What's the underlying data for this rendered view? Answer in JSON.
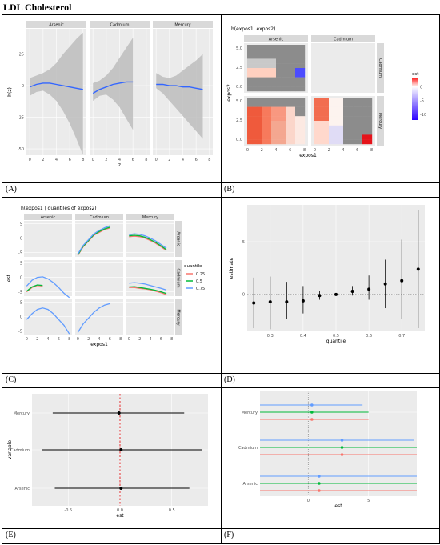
{
  "title": "LDL Cholesterol",
  "panel_labels": [
    "(A)",
    "(B)",
    "(C)",
    "(D)",
    "(E)",
    "(F)"
  ],
  "colors": {
    "panel_bg": "#ebebeb",
    "strip_bg": "#d9d9d9",
    "line_blue": "#3366ff",
    "ribbon": "#bdbdbd",
    "q25": "#f8766d",
    "q50": "#00ba38",
    "q75": "#619cff",
    "ref_red": "#e41a1c"
  },
  "chart_data": [
    {
      "id": "A",
      "type": "line",
      "metals": [
        "Arsenic",
        "Cadmium",
        "Mercury"
      ],
      "xlabel": "z",
      "ylabel": "h(z)",
      "x_ticks": [
        "0",
        "2",
        "4",
        "6",
        "8"
      ],
      "y_ticks": [
        "25",
        "0",
        "-25",
        "-50"
      ],
      "ylim": [
        -55,
        45
      ],
      "series": [
        {
          "metal": "Arsenic",
          "x": [
            0,
            1,
            2,
            3,
            4,
            5,
            6,
            7,
            8
          ],
          "est": [
            -1,
            1,
            2,
            2,
            1,
            0,
            -1,
            -2,
            -3
          ],
          "lower": [
            -8,
            -5,
            -4,
            -7,
            -12,
            -20,
            -30,
            -42,
            -55
          ],
          "upper": [
            6,
            8,
            10,
            13,
            18,
            25,
            31,
            37,
            42
          ]
        },
        {
          "metal": "Cadmium",
          "x": [
            0,
            1,
            2,
            3,
            4,
            5,
            6
          ],
          "est": [
            -6,
            -3,
            -1,
            1,
            2,
            3,
            3
          ],
          "lower": [
            -12,
            -8,
            -7,
            -11,
            -17,
            -26,
            -35
          ],
          "upper": [
            2,
            4,
            8,
            14,
            22,
            30,
            38
          ]
        },
        {
          "metal": "Mercury",
          "x": [
            0,
            1,
            2,
            3,
            4,
            5,
            6,
            7
          ],
          "est": [
            1,
            1,
            0,
            0,
            -1,
            -1,
            -2,
            -3
          ],
          "lower": [
            -2,
            -6,
            -12,
            -18,
            -24,
            -30,
            -36,
            -42
          ],
          "upper": [
            10,
            7,
            6,
            8,
            12,
            16,
            20,
            25
          ]
        }
      ]
    },
    {
      "id": "B",
      "type": "heatmap",
      "title": "h(expos1, expos2)",
      "columns": [
        "Arsenic",
        "Cadmium"
      ],
      "rows": [
        "Cadmium",
        "Mercury"
      ],
      "xlabel": "expos1",
      "ylabel": "expos2",
      "x_ticks": [
        "0",
        "2",
        "4",
        "6",
        "8"
      ],
      "y_ticks": [
        "5.0",
        "2.5",
        "0.0"
      ],
      "legend_title": "est",
      "legend_ticks": [
        "0",
        "-5",
        "-10"
      ],
      "est_range": [
        -12,
        3
      ]
    },
    {
      "id": "C",
      "type": "line",
      "title": "h(expos1 | quantiles of expos2)",
      "columns": [
        "Arsenic",
        "Cadmium",
        "Mercury"
      ],
      "rows": [
        "Arsenic",
        "Cadmium",
        "Mercury"
      ],
      "xlabel": "expos1",
      "ylabel": "est",
      "x_ticks": [
        "0",
        "2",
        "4",
        "6",
        "8"
      ],
      "y_ticks": [
        "5",
        "0",
        "-5"
      ],
      "ylim": [
        -6.5,
        6
      ],
      "legend_title": "quantile",
      "quantiles": [
        "0.25",
        "0.5",
        "0.75"
      ],
      "cells": [
        {
          "row": 0,
          "col": 1,
          "x": [
            0,
            1,
            2,
            3,
            4,
            5,
            6
          ],
          "q25": [
            -6,
            -3,
            -1,
            1,
            2,
            3,
            3.5
          ],
          "q50": [
            -5.8,
            -2.8,
            -0.8,
            1.2,
            2.3,
            3.2,
            3.8
          ],
          "q75": [
            -5.5,
            -2.5,
            -0.5,
            1.5,
            2.7,
            3.6,
            4.3
          ]
        },
        {
          "row": 0,
          "col": 2,
          "x": [
            0,
            1,
            2,
            3,
            4,
            5,
            6,
            7
          ],
          "q25": [
            0.5,
            0.7,
            0.5,
            0,
            -0.8,
            -1.8,
            -3,
            -4.3
          ],
          "q50": [
            0.8,
            1,
            0.8,
            0.3,
            -0.5,
            -1.5,
            -2.7,
            -4
          ],
          "q75": [
            1.2,
            1.5,
            1.3,
            0.8,
            0,
            -1,
            -2.2,
            -3.5
          ]
        },
        {
          "row": 1,
          "col": 0,
          "x": [
            0,
            1,
            2,
            3,
            4,
            5,
            6,
            7,
            8
          ],
          "q25": [
            -5,
            -3.5,
            -2.8,
            -3,
            null,
            null,
            null,
            null,
            null
          ],
          "q50": [
            -4.8,
            -3.3,
            -2.6,
            -2.8,
            null,
            null,
            null,
            null,
            null
          ],
          "q75": [
            -3,
            -1,
            0,
            0.2,
            -0.5,
            -1.8,
            -3.5,
            -5.5,
            -7
          ]
        },
        {
          "row": 1,
          "col": 2,
          "x": [
            0,
            1,
            2,
            3,
            4,
            5,
            6,
            7
          ],
          "q25": [
            -3.5,
            -3.5,
            -3.8,
            -4,
            -4.3,
            -4.8,
            -5.3,
            -6
          ],
          "q50": [
            -3.3,
            -3.2,
            -3.5,
            -3.8,
            -4.1,
            -4.5,
            -5,
            -5.6
          ],
          "q75": [
            -2,
            -1.8,
            -2,
            -2.3,
            -2.8,
            -3.3,
            -3.8,
            -4.4
          ]
        },
        {
          "row": 2,
          "col": 0,
          "x": [
            0,
            1,
            2,
            3,
            4,
            5,
            6,
            7,
            8
          ],
          "q25": [],
          "q50": [],
          "q75": [
            -1,
            1,
            2.5,
            3,
            2.5,
            1,
            -1,
            -3,
            -6
          ]
        },
        {
          "row": 2,
          "col": 1,
          "x": [
            0,
            1,
            2,
            3,
            4,
            5,
            6
          ],
          "q25": [],
          "q50": [],
          "q75": [
            -5.5,
            -2.5,
            -0.5,
            1.5,
            3,
            4,
            4.5
          ]
        }
      ]
    },
    {
      "id": "D",
      "type": "scatter",
      "xlabel": "quantile",
      "ylabel": "estimate",
      "x_ticks": [
        "0.3",
        "0.4",
        "0.5",
        "0.6",
        "0.7"
      ],
      "y_ticks": [
        "5",
        "0"
      ],
      "xlim": [
        0.23,
        0.77
      ],
      "ylim": [
        -3.5,
        8.5
      ],
      "x": [
        0.25,
        0.3,
        0.35,
        0.4,
        0.45,
        0.5,
        0.55,
        0.6,
        0.65,
        0.7,
        0.75
      ],
      "est": [
        -0.8,
        -0.7,
        -0.7,
        -0.6,
        -0.1,
        0,
        0.3,
        0.5,
        1,
        1.3,
        2.4
      ],
      "lower": [
        -3.2,
        -3.3,
        -2.3,
        -1.8,
        -0.5,
        0,
        -0.1,
        -0.5,
        -1.3,
        -2.3,
        -3.2
      ],
      "upper": [
        1.6,
        1.7,
        1.2,
        0.8,
        0.3,
        0,
        0.8,
        1.8,
        3.3,
        5.2,
        8
      ]
    },
    {
      "id": "E",
      "type": "scatter",
      "xlabel": "est",
      "ylabel": "variable",
      "categories": [
        "Mercury",
        "Cadmium",
        "Arsenic"
      ],
      "x_ticks": [
        "-0.5",
        "0.0",
        "0.5"
      ],
      "xlim": [
        -0.85,
        0.85
      ],
      "est": [
        -0.01,
        0.01,
        0.01
      ],
      "lower": [
        -0.65,
        -0.75,
        -0.63
      ],
      "upper": [
        0.62,
        0.79,
        0.67
      ]
    },
    {
      "id": "F",
      "type": "scatter",
      "xlabel": "est",
      "categories": [
        "Mercury",
        "Cadmium",
        "Arsenic"
      ],
      "x_ticks": [
        "0",
        "5"
      ],
      "xlim": [
        -4,
        9
      ],
      "quantiles": [
        "0.75",
        "0.5",
        "0.25"
      ],
      "est": [
        [
          0.3,
          0.3,
          0.3
        ],
        [
          2.8,
          2.8,
          2.8
        ],
        [
          0.9,
          0.9,
          0.9
        ]
      ],
      "lower": [
        [
          -4,
          -4,
          -4
        ],
        [
          -4,
          -4,
          -4
        ],
        [
          -4,
          -4,
          -4
        ]
      ],
      "upper": [
        [
          4.5,
          5,
          5
        ],
        [
          8.8,
          9,
          9
        ],
        [
          9,
          10,
          10
        ]
      ]
    }
  ]
}
